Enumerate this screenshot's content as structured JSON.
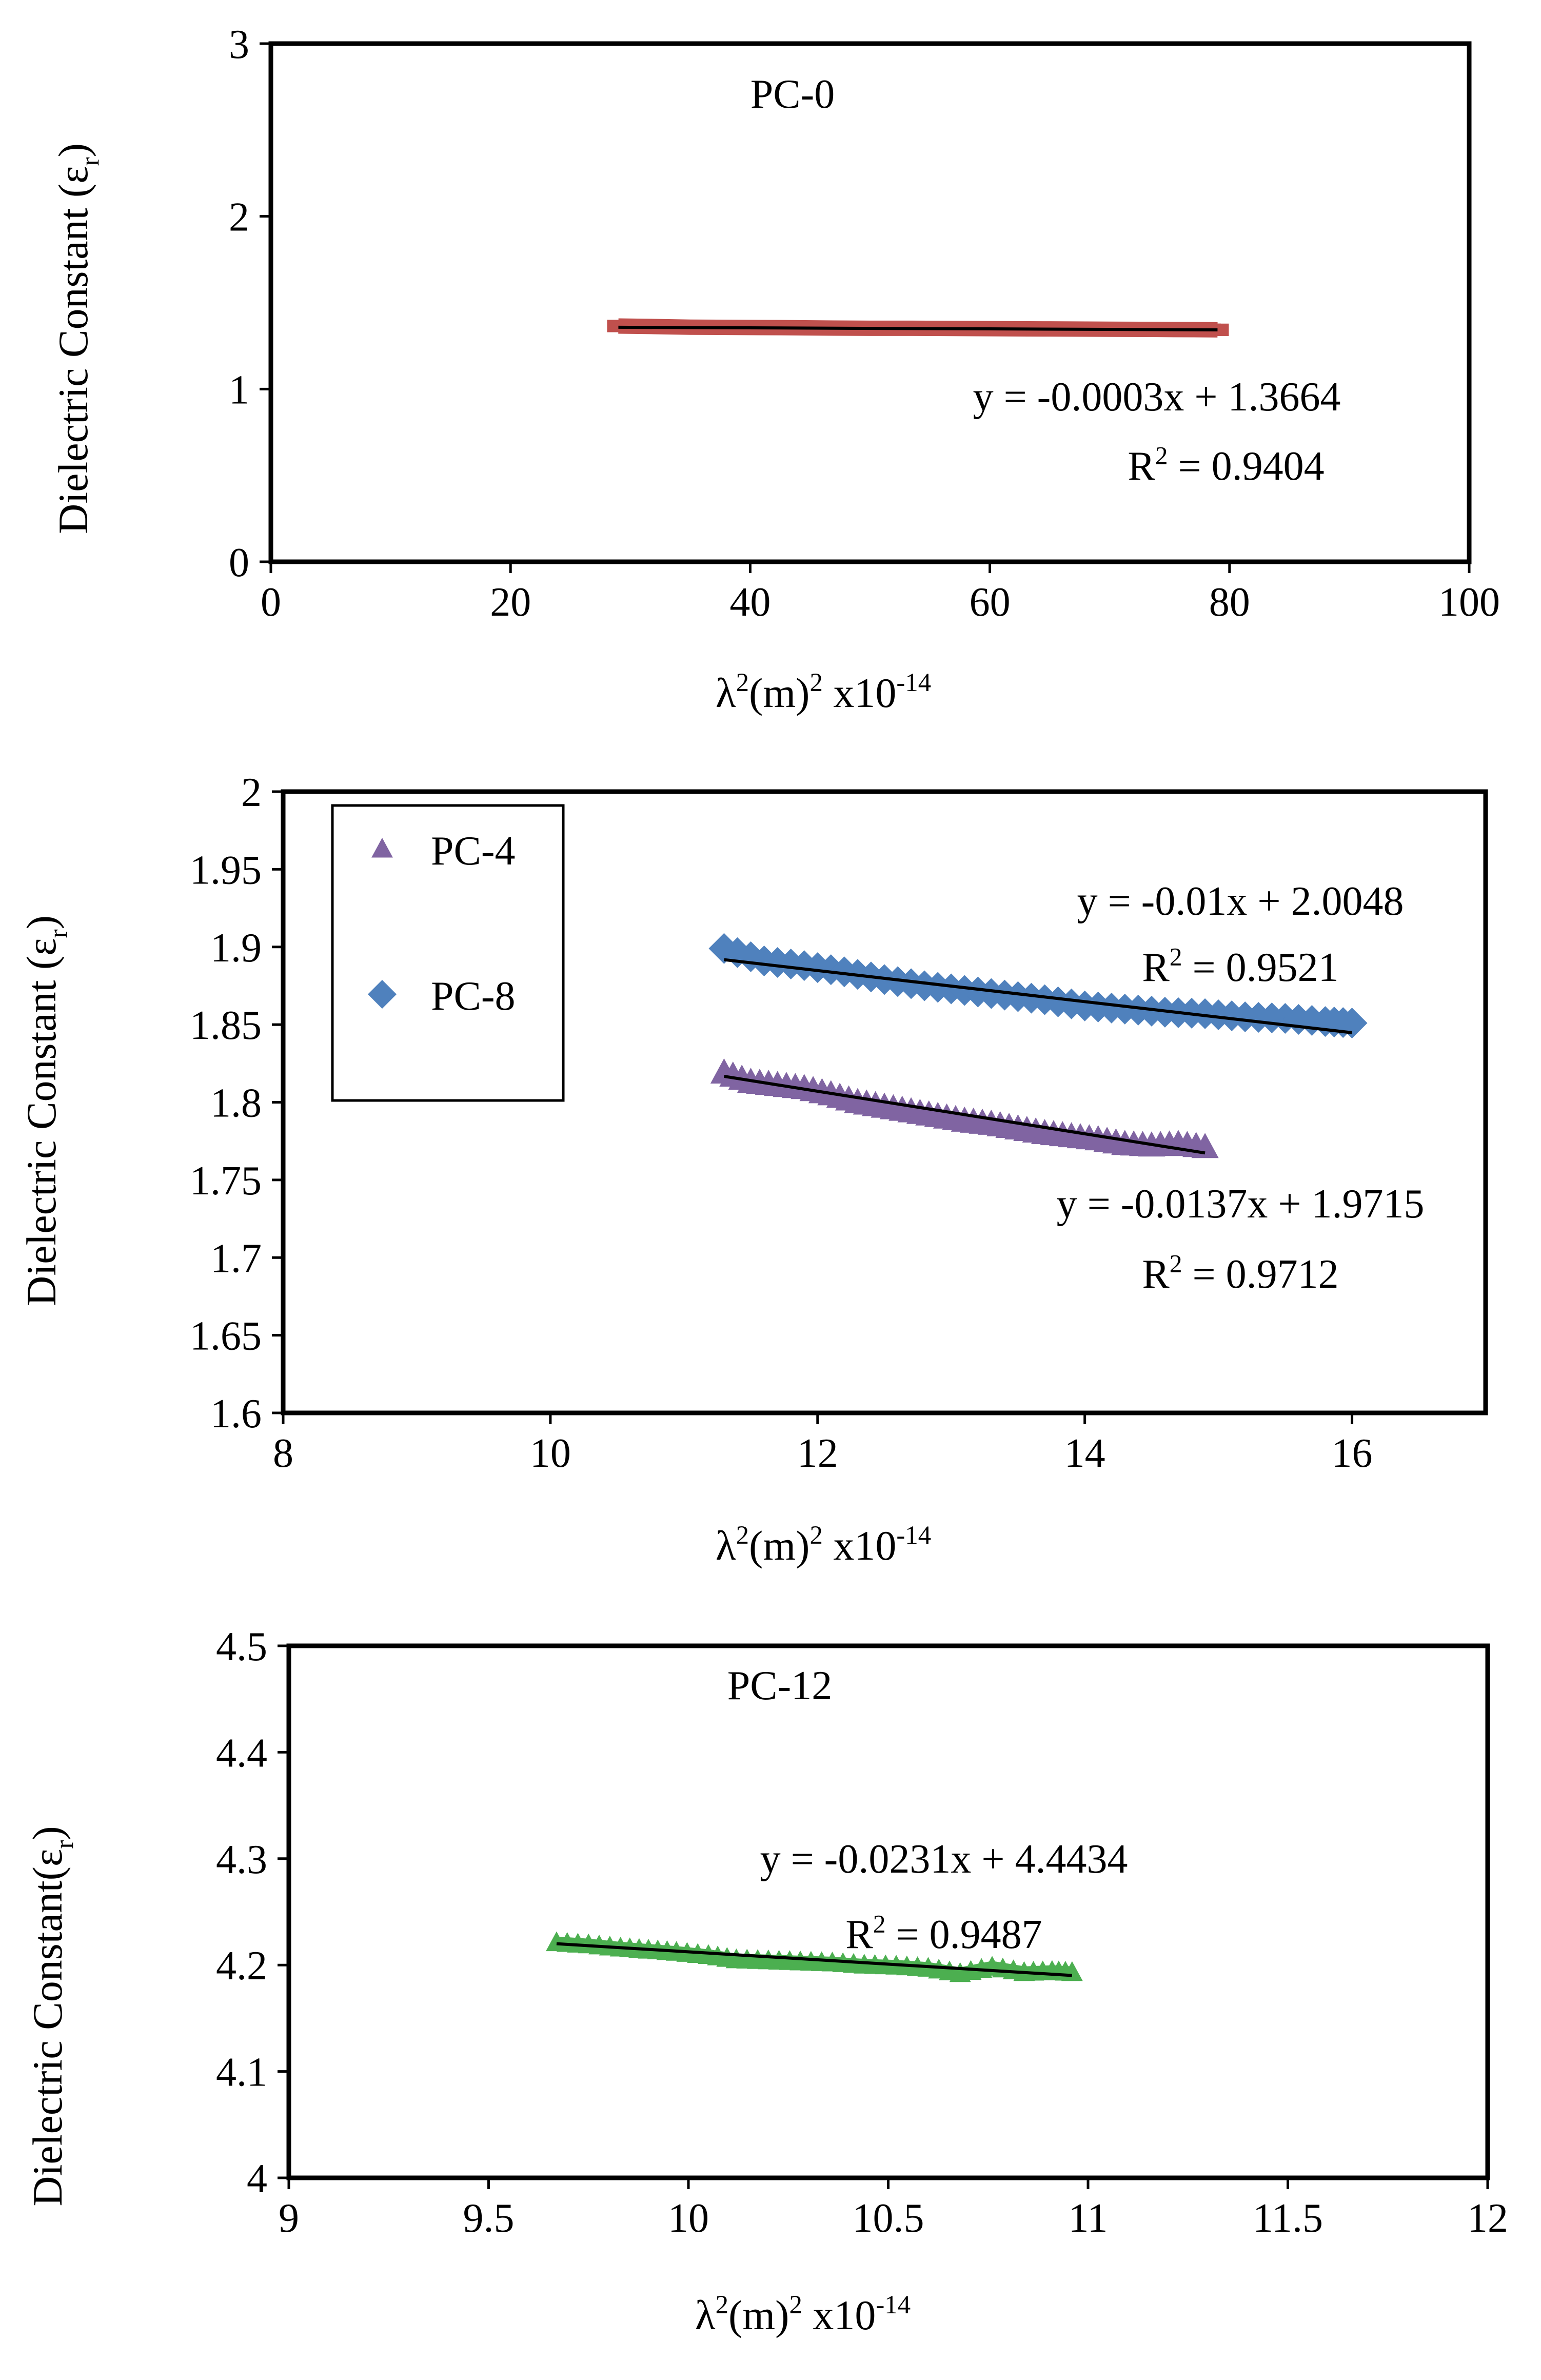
{
  "colors": {
    "axis": "#000000",
    "trendline": "#000000",
    "pc0": "#c0504d",
    "pc4": "#8064a2",
    "pc8": "#4f81bd",
    "pc12": "#4caf50"
  },
  "chart_data": [
    {
      "type": "line",
      "title": "",
      "xlabel": "λ2(m)2 x10-14",
      "ylabel": "Dielectric Constant (εr)",
      "xlim": [
        0,
        100
      ],
      "ylim": [
        0,
        3
      ],
      "x_ticks": [
        "0",
        "20",
        "40",
        "60",
        "80",
        "100"
      ],
      "y_ticks": [
        "0",
        "1",
        "2",
        "3"
      ],
      "grid": false,
      "annotations": [
        {
          "text": "PC-0"
        },
        {
          "text": "y = -0.0003x + 1.3664"
        },
        {
          "text": "R² = 0.9404"
        }
      ],
      "series": [
        {
          "name": "PC-0",
          "marker": "square",
          "x": [
            29,
            32,
            35,
            38,
            41,
            44,
            47,
            50,
            53,
            56,
            59,
            62,
            65,
            68,
            71,
            74,
            77,
            79
          ],
          "y": [
            1.365,
            1.362,
            1.358,
            1.357,
            1.356,
            1.355,
            1.353,
            1.352,
            1.352,
            1.351,
            1.35,
            1.349,
            1.348,
            1.347,
            1.346,
            1.345,
            1.344,
            1.343
          ],
          "trendline": {
            "slope": -0.0003,
            "intercept": 1.3664,
            "x_range": [
              29,
              79
            ]
          }
        }
      ]
    },
    {
      "type": "scatter",
      "title": "",
      "xlabel": "λ2(m)2 x10-14",
      "ylabel": "Dielectric Constant (εr)",
      "xlim": [
        8,
        17
      ],
      "ylim": [
        1.6,
        2.0
      ],
      "x_ticks": [
        "8",
        "10",
        "12",
        "14",
        "16"
      ],
      "y_ticks": [
        "1.6",
        "1.65",
        "1.7",
        "1.75",
        "1.8",
        "1.85",
        "1.9",
        "1.95",
        "2"
      ],
      "grid": false,
      "legend": {
        "position": "top-left",
        "entries": [
          "PC-4",
          "PC-8"
        ]
      },
      "annotations": [
        {
          "text": "y = -0.01x + 2.0048"
        },
        {
          "text": "R² = 0.9521"
        },
        {
          "text": "y = -0.0137x + 1.9715"
        },
        {
          "text": "R² = 0.9712"
        }
      ],
      "series": [
        {
          "name": "PC-4",
          "marker": "triangle",
          "x": [
            11.3,
            11.5,
            11.7,
            11.9,
            12.1,
            12.3,
            12.5,
            12.7,
            12.9,
            13.1,
            13.3,
            13.5,
            13.7,
            13.9,
            14.1,
            14.3,
            14.5,
            14.7,
            14.9
          ],
          "y": [
            1.819,
            1.813,
            1.811,
            1.809,
            1.805,
            1.8,
            1.797,
            1.794,
            1.791,
            1.788,
            1.786,
            1.783,
            1.78,
            1.778,
            1.776,
            1.773,
            1.772,
            1.773,
            1.771
          ],
          "trendline": {
            "slope": -0.0137,
            "intercept": 1.9715,
            "x_range": [
              11.3,
              14.9
            ]
          }
        },
        {
          "name": "PC-8",
          "marker": "diamond",
          "x": [
            11.3,
            11.6,
            11.9,
            12.2,
            12.5,
            12.8,
            13.1,
            13.4,
            13.7,
            14.0,
            14.3,
            14.6,
            14.9,
            15.2,
            15.5,
            15.8,
            16.0
          ],
          "y": [
            1.899,
            1.891,
            1.888,
            1.884,
            1.879,
            1.875,
            1.872,
            1.869,
            1.866,
            1.862,
            1.86,
            1.858,
            1.857,
            1.855,
            1.854,
            1.852,
            1.851
          ],
          "trendline": {
            "slope": -0.01,
            "intercept": 2.0048,
            "x_range": [
              11.3,
              16.0
            ]
          }
        }
      ]
    },
    {
      "type": "line",
      "title": "",
      "xlabel": "λ2(m)2 x10-14",
      "ylabel": "Dielectric Constant(εr)",
      "xlim": [
        9,
        12
      ],
      "ylim": [
        4,
        4.5
      ],
      "x_ticks": [
        "9",
        "9.5",
        "10",
        "10.5",
        "11",
        "11.5",
        "12"
      ],
      "y_ticks": [
        "4",
        "4.1",
        "4.2",
        "4.3",
        "4.4",
        "4.5"
      ],
      "grid": false,
      "annotations": [
        {
          "text": "PC-12"
        },
        {
          "text": "y = -0.0231x + 4.4434"
        },
        {
          "text": "R² = 0.9487"
        }
      ],
      "series": [
        {
          "name": "PC-12",
          "marker": "triangle",
          "x": [
            9.67,
            9.75,
            9.83,
            9.9,
            9.97,
            10.05,
            10.12,
            10.2,
            10.28,
            10.36,
            10.44,
            10.52,
            10.6,
            10.68,
            10.76,
            10.84,
            10.91,
            10.96
          ],
          "y": [
            4.221,
            4.219,
            4.216,
            4.214,
            4.212,
            4.209,
            4.205,
            4.204,
            4.203,
            4.202,
            4.2,
            4.199,
            4.197,
            4.192,
            4.198,
            4.193,
            4.194,
            4.193
          ],
          "trendline": {
            "slope": -0.0231,
            "intercept": 4.4434,
            "x_range": [
              9.67,
              10.96
            ]
          }
        }
      ]
    }
  ]
}
